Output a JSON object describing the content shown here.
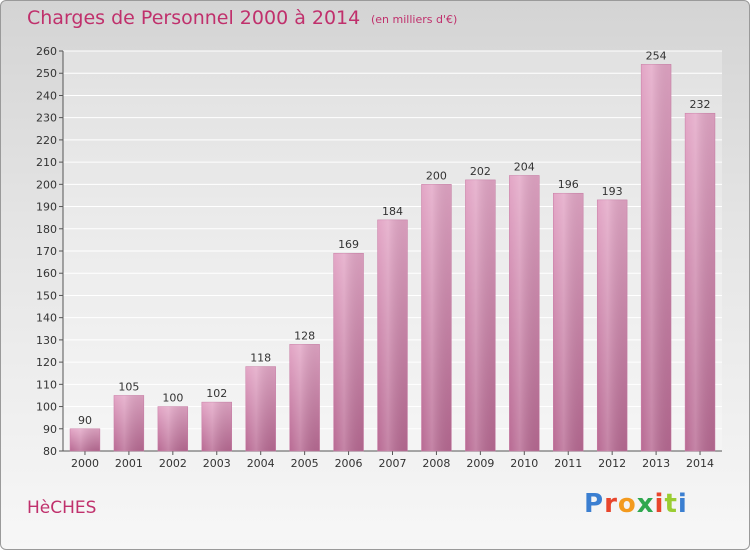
{
  "header": {
    "title": "Charges de Personnel 2000 à 2014",
    "subtitle": "(en milliers d'€)"
  },
  "footer": {
    "city": "HèCHES",
    "brand": "Proxiti",
    "brand_colors": [
      "#3b7fd1",
      "#e8452c",
      "#f39a1e",
      "#2fa84f",
      "#e8452c",
      "#9acd32",
      "#3b7fd1"
    ]
  },
  "chart_data": {
    "type": "bar",
    "categories": [
      "2000",
      "2001",
      "2002",
      "2003",
      "2004",
      "2005",
      "2006",
      "2007",
      "2008",
      "2009",
      "2010",
      "2011",
      "2012",
      "2013",
      "2014"
    ],
    "values": [
      90,
      105,
      100,
      102,
      118,
      128,
      169,
      184,
      200,
      202,
      204,
      196,
      193,
      254,
      232
    ],
    "data_labels": [
      "90",
      "105",
      "100",
      "102",
      "118",
      "128",
      "169",
      "184",
      "200",
      "202",
      "204",
      "196",
      "193",
      "254",
      "232"
    ],
    "title": "Charges de Personnel 2000 à 2014",
    "subtitle": "(en milliers d'€)",
    "ylim": [
      80,
      260
    ],
    "yticks": [
      "80",
      "90",
      "100",
      "110",
      "120",
      "130",
      "140",
      "150",
      "160",
      "170",
      "180",
      "190",
      "200",
      "210",
      "220",
      "230",
      "240",
      "250",
      "260"
    ],
    "grid": true,
    "bar_color": "#d98cb6"
  }
}
